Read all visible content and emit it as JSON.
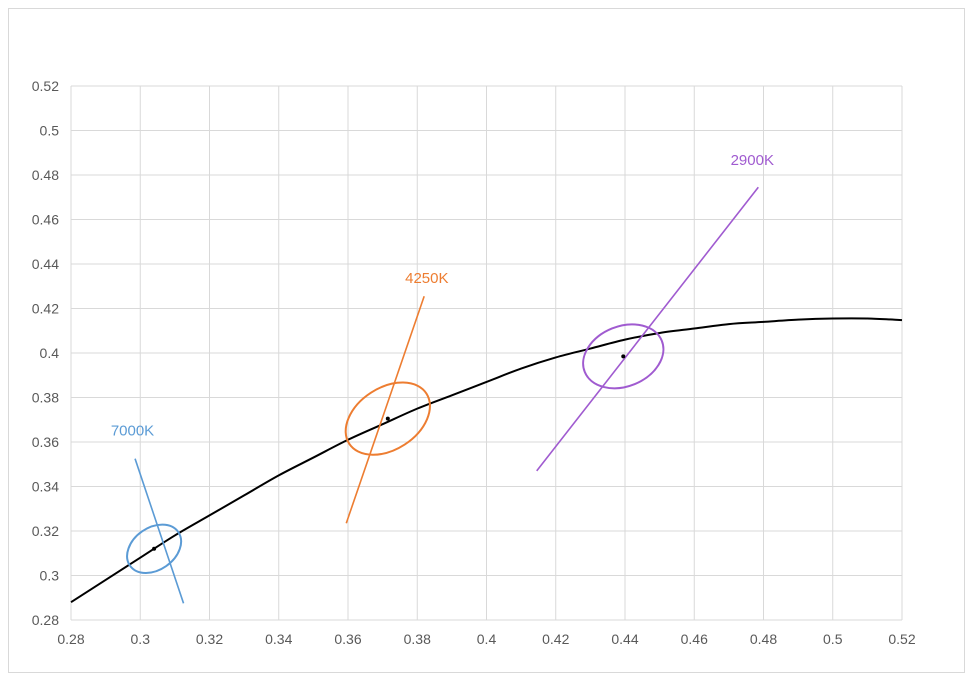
{
  "chart_data": {
    "type": "scatter",
    "title": "",
    "xlabel": "",
    "ylabel": "",
    "xlim": [
      0.28,
      0.52
    ],
    "ylim": [
      0.28,
      0.52
    ],
    "x_ticks": [
      "0.28",
      "0.3",
      "0.32",
      "0.34",
      "0.36",
      "0.38",
      "0.4",
      "0.42",
      "0.44",
      "0.46",
      "0.48",
      "0.5",
      "0.52"
    ],
    "y_ticks": [
      "0.28",
      "0.3",
      "0.32",
      "0.34",
      "0.36",
      "0.38",
      "0.4",
      "0.42",
      "0.44",
      "0.46",
      "0.48",
      "0.5",
      "0.52"
    ],
    "grid": true,
    "legend": "none",
    "locus": {
      "color": "#000000",
      "x": [
        0.28,
        0.29,
        0.3,
        0.31,
        0.32,
        0.33,
        0.34,
        0.35,
        0.36,
        0.37,
        0.38,
        0.39,
        0.4,
        0.41,
        0.42,
        0.43,
        0.44,
        0.45,
        0.46,
        0.47,
        0.48,
        0.49,
        0.5,
        0.51,
        0.52
      ],
      "y": [
        0.288,
        0.298,
        0.308,
        0.318,
        0.327,
        0.336,
        0.345,
        0.353,
        0.361,
        0.368,
        0.375,
        0.381,
        0.387,
        0.393,
        0.398,
        0.402,
        0.406,
        0.409,
        0.411,
        0.413,
        0.414,
        0.415,
        0.4155,
        0.4155,
        0.4148
      ]
    },
    "annotations": [
      {
        "label": "7000K",
        "color": "#5b9bd5",
        "center": [
          0.304,
          0.312
        ],
        "isotherm": [
          [
            0.2985,
            0.3525
          ],
          [
            0.3125,
            0.2875
          ]
        ],
        "ellipse": {
          "rx": 0.0085,
          "ry": 0.0095,
          "angle_deg": -35
        },
        "label_pos": [
          0.2915,
          0.363
        ]
      },
      {
        "label": "4250K",
        "color": "#ed7d31",
        "center": [
          0.3715,
          0.3705
        ],
        "isotherm": [
          [
            0.3595,
            0.3235
          ],
          [
            0.382,
            0.4255
          ]
        ],
        "ellipse": {
          "rx": 0.0133,
          "ry": 0.0139,
          "angle_deg": -33
        },
        "label_pos": [
          0.3765,
          0.4315
        ]
      },
      {
        "label": "2900K",
        "color": "#a05bd0",
        "center": [
          0.4395,
          0.3985
        ],
        "isotherm": [
          [
            0.4145,
            0.347
          ],
          [
            0.4785,
            0.4745
          ]
        ],
        "ellipse": {
          "rx": 0.012,
          "ry": 0.0135,
          "angle_deg": -22
        },
        "label_pos": [
          0.4705,
          0.4845
        ]
      }
    ]
  }
}
